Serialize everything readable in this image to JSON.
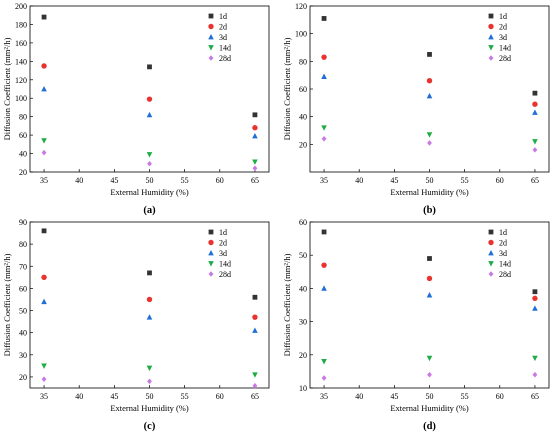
{
  "figure": {
    "legend_position": "top-right",
    "marker_colors": {
      "1d": "#333333",
      "2d": "#e8332f",
      "3d": "#1f6fd6",
      "14d": "#1ead44",
      "28d": "#c879e6"
    },
    "marker_shapes": {
      "1d": "square",
      "2d": "circle",
      "3d": "triangle-up",
      "14d": "triangle-down",
      "28d": "diamond"
    }
  },
  "chart_data": [
    {
      "type": "scatter",
      "panel": "(a)",
      "xlabel": "External Humidity (%)",
      "ylabel": "Diffusion Coefficient (mm²/h)",
      "xlim": [
        33,
        67
      ],
      "ylim": [
        20,
        200
      ],
      "xticks": [
        35,
        40,
        45,
        50,
        55,
        60,
        65
      ],
      "yticks": [
        20,
        40,
        60,
        80,
        100,
        120,
        140,
        160,
        180,
        200
      ],
      "x": [
        35,
        50,
        65
      ],
      "series": [
        {
          "name": "1d",
          "values": [
            188,
            134,
            82
          ]
        },
        {
          "name": "2d",
          "values": [
            135,
            99,
            68
          ]
        },
        {
          "name": "3d",
          "values": [
            110,
            82,
            59
          ]
        },
        {
          "name": "14d",
          "values": [
            54,
            39,
            31
          ]
        },
        {
          "name": "28d",
          "values": [
            41,
            29,
            24
          ]
        }
      ],
      "grid": false
    },
    {
      "type": "scatter",
      "panel": "(b)",
      "xlabel": "External Humidity (%)",
      "ylabel": "Diffusion Coefficient (mm²/h)",
      "xlim": [
        33,
        67
      ],
      "ylim": [
        0,
        120
      ],
      "xticks": [
        35,
        40,
        45,
        50,
        55,
        60,
        65
      ],
      "yticks": [
        20,
        40,
        60,
        80,
        100,
        120
      ],
      "x": [
        35,
        50,
        65
      ],
      "series": [
        {
          "name": "1d",
          "values": [
            111,
            85,
            57
          ]
        },
        {
          "name": "2d",
          "values": [
            83,
            66,
            49
          ]
        },
        {
          "name": "3d",
          "values": [
            69,
            55,
            43
          ]
        },
        {
          "name": "14d",
          "values": [
            32,
            27,
            22
          ]
        },
        {
          "name": "28d",
          "values": [
            24,
            21,
            16
          ]
        }
      ],
      "grid": false
    },
    {
      "type": "scatter",
      "panel": "(c)",
      "xlabel": "External Humidity (%)",
      "ylabel": "Diffusion Coefficient (mm²/h)",
      "xlim": [
        33,
        67
      ],
      "ylim": [
        15,
        90
      ],
      "xticks": [
        35,
        40,
        45,
        50,
        55,
        60,
        65
      ],
      "yticks": [
        20,
        30,
        40,
        50,
        60,
        70,
        80,
        90
      ],
      "x": [
        35,
        50,
        65
      ],
      "series": [
        {
          "name": "1d",
          "values": [
            86,
            67,
            56
          ]
        },
        {
          "name": "2d",
          "values": [
            65,
            55,
            47
          ]
        },
        {
          "name": "3d",
          "values": [
            54,
            47,
            41
          ]
        },
        {
          "name": "14d",
          "values": [
            25,
            24,
            21
          ]
        },
        {
          "name": "28d",
          "values": [
            19,
            18,
            16
          ]
        }
      ],
      "grid": false
    },
    {
      "type": "scatter",
      "panel": "(d)",
      "xlabel": "External Humidity (%)",
      "ylabel": "Diffusion Coefficient (mm²/h)",
      "xlim": [
        33,
        67
      ],
      "ylim": [
        10,
        60
      ],
      "xticks": [
        35,
        40,
        45,
        50,
        55,
        60,
        65
      ],
      "yticks": [
        10,
        20,
        30,
        40,
        50,
        60
      ],
      "x": [
        35,
        50,
        65
      ],
      "series": [
        {
          "name": "1d",
          "values": [
            57,
            49,
            39
          ]
        },
        {
          "name": "2d",
          "values": [
            47,
            43,
            37
          ]
        },
        {
          "name": "3d",
          "values": [
            40,
            38,
            34
          ]
        },
        {
          "name": "14d",
          "values": [
            18,
            19,
            19
          ]
        },
        {
          "name": "28d",
          "values": [
            13,
            14,
            14
          ]
        }
      ],
      "grid": false
    }
  ]
}
